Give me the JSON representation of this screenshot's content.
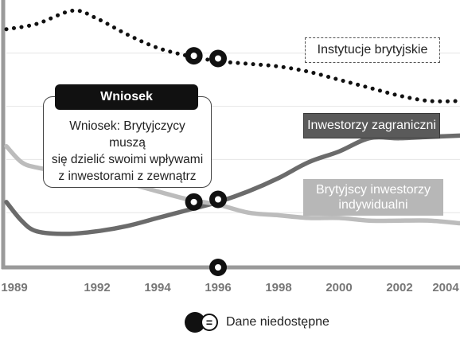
{
  "chart_data": {
    "type": "line",
    "title": "",
    "xlabel": "",
    "ylabel": "",
    "xlim": [
      1989,
      2004
    ],
    "ylim": [
      0,
      100
    ],
    "x_ticks": [
      "1989",
      "1992",
      "1994",
      "1996",
      "1998",
      "2000",
      "2002",
      "2004"
    ],
    "series": [
      {
        "name": "Instytucje brytyjskie",
        "style": "dotted",
        "color": "#111111",
        "points": [
          [
            1989,
            89
          ],
          [
            1990,
            91
          ],
          [
            1991.2,
            96
          ],
          [
            1992,
            93
          ],
          [
            1993,
            87
          ],
          [
            1994,
            82
          ],
          [
            1995,
            79
          ],
          [
            1996,
            77
          ],
          [
            1997,
            76
          ],
          [
            1998,
            75
          ],
          [
            1999,
            73
          ],
          [
            2000,
            70
          ],
          [
            2001,
            67
          ],
          [
            2002,
            64
          ],
          [
            2003,
            62
          ],
          [
            2004,
            62
          ]
        ]
      },
      {
        "name": "Inwestorzy zagraniczni",
        "style": "solid",
        "color": "#6b6b6b",
        "points": [
          [
            1989,
            24
          ],
          [
            1989.5,
            17
          ],
          [
            1990,
            13
          ],
          [
            1991,
            12
          ],
          [
            1992,
            13
          ],
          [
            1993,
            15
          ],
          [
            1994,
            18
          ],
          [
            1995,
            21
          ],
          [
            1996,
            24
          ],
          [
            1997,
            28
          ],
          [
            1998,
            33
          ],
          [
            1999,
            39
          ],
          [
            2000,
            43
          ],
          [
            2001,
            48
          ],
          [
            2002,
            48
          ],
          [
            2003,
            48.5
          ],
          [
            2004,
            49
          ]
        ]
      },
      {
        "name": "Brytyjscy inwestorzy indywidualni",
        "style": "solid",
        "color": "#bcbcbc",
        "points": [
          [
            1989,
            45
          ],
          [
            1989.5,
            39
          ],
          [
            1990,
            37
          ],
          [
            1991,
            35
          ],
          [
            1992,
            33
          ],
          [
            1993,
            31
          ],
          [
            1994,
            28
          ],
          [
            1995,
            25
          ],
          [
            1996,
            23
          ],
          [
            1997,
            20
          ],
          [
            1998,
            19
          ],
          [
            1999,
            18
          ],
          [
            2000,
            18
          ],
          [
            2001,
            17
          ],
          [
            2002,
            17
          ],
          [
            2003,
            17
          ],
          [
            2004,
            16
          ]
        ]
      }
    ],
    "missing_markers": [
      [
        1995.2,
        79
      ],
      [
        1996,
        78
      ],
      [
        1995.2,
        24
      ],
      [
        1996,
        25
      ],
      [
        1996,
        0
      ]
    ],
    "labels": {
      "inst": "Instytucje brytyjskie",
      "foreign": "Inwestorzy zagraniczni",
      "indiv_line1": "Brytyjscy inwestorzy",
      "indiv_line2": "indywidualni"
    },
    "callout": {
      "title": "Wniosek",
      "line1": "Wniosek: Brytyjczycy muszą",
      "line2": "się dzielić swoimi wpływami",
      "line3": "z inwestorami z zewnątrz"
    },
    "legend": {
      "symbol": "=",
      "text": "Dane niedostępne"
    }
  }
}
